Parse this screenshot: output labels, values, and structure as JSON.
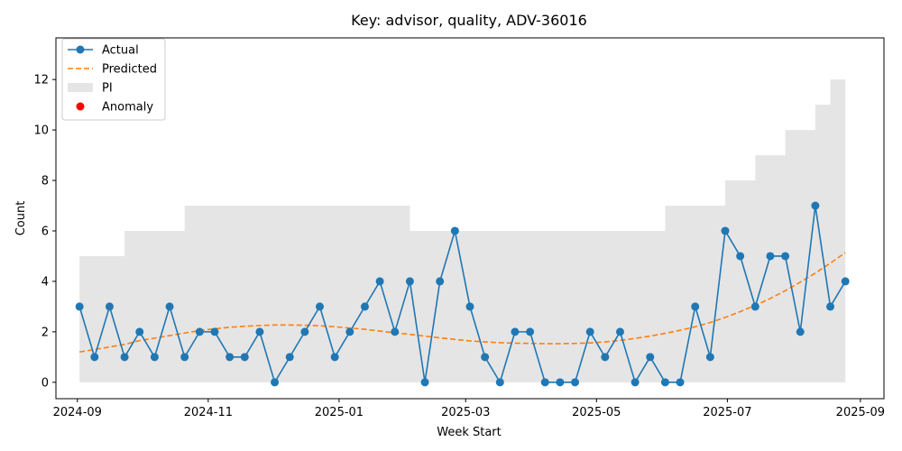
{
  "chart_data": {
    "type": "line",
    "title": "Key: advisor, quality, ADV-36016",
    "xlabel": "Week Start",
    "ylabel": "Count",
    "x_type": "date",
    "xlim": [
      "2024-08-22",
      "2025-09-12"
    ],
    "ylim": [
      -0.65,
      13.65
    ],
    "x_ticks": [
      {
        "date": "2024-09-01",
        "label": "2024-09"
      },
      {
        "date": "2024-11-01",
        "label": "2024-11"
      },
      {
        "date": "2025-01-01",
        "label": "2025-01"
      },
      {
        "date": "2025-03-01",
        "label": "2025-03"
      },
      {
        "date": "2025-05-01",
        "label": "2025-05"
      },
      {
        "date": "2025-07-01",
        "label": "2025-07"
      },
      {
        "date": "2025-09-01",
        "label": "2025-09"
      }
    ],
    "y_ticks": [
      0,
      2,
      4,
      6,
      8,
      10,
      12
    ],
    "grid": false,
    "legend": {
      "placement": "top-left",
      "entries": [
        {
          "label": "Actual",
          "kind": "line-marker",
          "color": "#1f77b4"
        },
        {
          "label": "Predicted",
          "kind": "dashed-line",
          "color": "#ff7f0e"
        },
        {
          "label": "PI",
          "kind": "patch",
          "color": "#e5e5e5"
        },
        {
          "label": "Anomaly",
          "kind": "scatter",
          "color": "#ff0000"
        }
      ]
    },
    "x": [
      "2024-09-02",
      "2024-09-09",
      "2024-09-16",
      "2024-09-23",
      "2024-09-30",
      "2024-10-07",
      "2024-10-14",
      "2024-10-21",
      "2024-10-28",
      "2024-11-04",
      "2024-11-11",
      "2024-11-18",
      "2024-11-25",
      "2024-12-02",
      "2024-12-09",
      "2024-12-16",
      "2024-12-23",
      "2024-12-30",
      "2025-01-06",
      "2025-01-13",
      "2025-01-20",
      "2025-01-27",
      "2025-02-03",
      "2025-02-10",
      "2025-02-17",
      "2025-02-24",
      "2025-03-03",
      "2025-03-10",
      "2025-03-17",
      "2025-03-24",
      "2025-03-31",
      "2025-04-07",
      "2025-04-14",
      "2025-04-21",
      "2025-04-28",
      "2025-05-05",
      "2025-05-12",
      "2025-05-19",
      "2025-05-26",
      "2025-06-02",
      "2025-06-09",
      "2025-06-16",
      "2025-06-23",
      "2025-06-30",
      "2025-07-07",
      "2025-07-14",
      "2025-07-21",
      "2025-07-28",
      "2025-08-04",
      "2025-08-11",
      "2025-08-18",
      "2025-08-25"
    ],
    "series": [
      {
        "name": "Actual",
        "color": "#1f77b4",
        "values": [
          3,
          1,
          3,
          1,
          2,
          1,
          3,
          1,
          2,
          2,
          1,
          1,
          2,
          0,
          1,
          2,
          3,
          1,
          2,
          3,
          4,
          2,
          4,
          0,
          4,
          6,
          3,
          1,
          0,
          2,
          2,
          0,
          0,
          0,
          2,
          1,
          2,
          0,
          1,
          0,
          0,
          3,
          1,
          6,
          5,
          3,
          5,
          5,
          2,
          7,
          3,
          4
        ]
      },
      {
        "name": "Predicted",
        "color": "#ff7f0e",
        "values": [
          1.2,
          1.3,
          1.4,
          1.5,
          1.65,
          1.75,
          1.85,
          1.95,
          2.05,
          2.12,
          2.18,
          2.22,
          2.25,
          2.27,
          2.27,
          2.26,
          2.24,
          2.2,
          2.15,
          2.1,
          2.03,
          1.96,
          1.9,
          1.83,
          1.76,
          1.7,
          1.64,
          1.6,
          1.57,
          1.55,
          1.54,
          1.53,
          1.53,
          1.54,
          1.56,
          1.6,
          1.66,
          1.74,
          1.83,
          1.94,
          2.06,
          2.2,
          2.37,
          2.57,
          2.8,
          3.05,
          3.32,
          3.63,
          3.97,
          4.33,
          4.72,
          5.14
        ]
      },
      {
        "name": "PI",
        "color": "#e5e5e5",
        "lower": [
          0,
          0,
          0,
          0,
          0,
          0,
          0,
          0,
          0,
          0,
          0,
          0,
          0,
          0,
          0,
          0,
          0,
          0,
          0,
          0,
          0,
          0,
          0,
          0,
          0,
          0,
          0,
          0,
          0,
          0,
          0,
          0,
          0,
          0,
          0,
          0,
          0,
          0,
          0,
          0,
          0,
          0,
          0,
          0,
          0,
          0,
          0,
          0,
          0,
          0,
          0,
          0
        ],
        "upper": [
          5,
          5,
          5,
          6,
          6,
          6,
          6,
          7,
          7,
          7,
          7,
          7,
          7,
          7,
          7,
          7,
          7,
          7,
          7,
          7,
          7,
          7,
          6,
          6,
          6,
          6,
          6,
          6,
          6,
          6,
          6,
          6,
          6,
          6,
          6,
          6,
          6,
          6,
          6,
          7,
          7,
          7,
          7,
          8,
          8,
          9,
          9,
          10,
          10,
          11,
          12,
          13
        ]
      }
    ],
    "anomalies": []
  }
}
